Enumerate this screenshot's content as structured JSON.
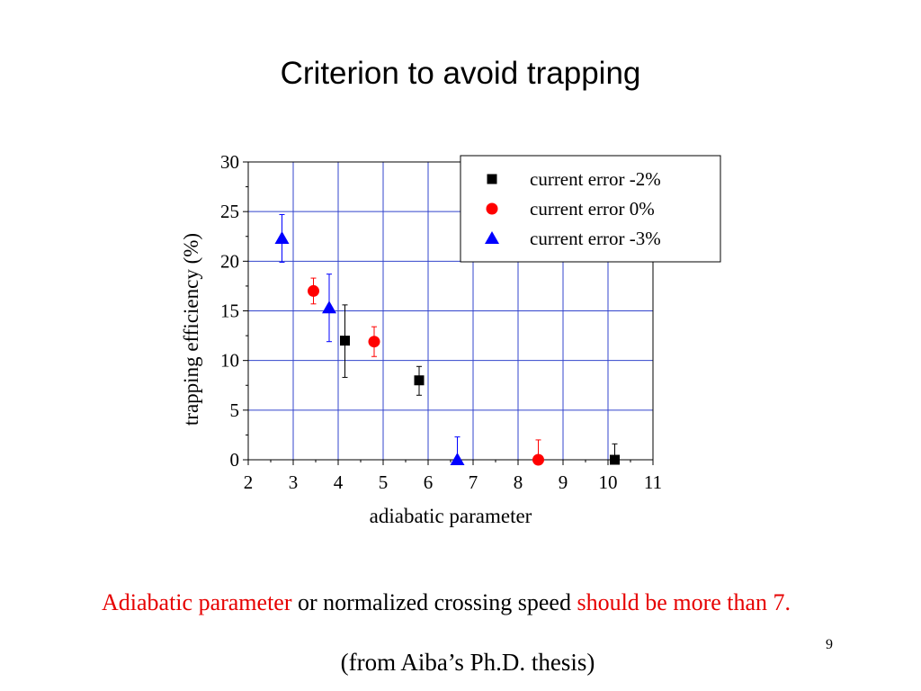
{
  "slide": {
    "title": "Criterion to avoid trapping",
    "conclusion": {
      "part1": "Adiabatic parameter",
      "part2": " or normalized crossing speed ",
      "part3": "should be more than 7."
    },
    "source": "(from Aiba’s Ph.D. thesis)",
    "page_number": "9"
  },
  "colors": {
    "highlight": "#e60000",
    "series_black": "#000000",
    "series_red": "#ff0000",
    "series_blue": "#0000ff",
    "grid": "#3344cc"
  },
  "chart_data": {
    "type": "scatter",
    "title": "",
    "xlabel": "adiabatic parameter",
    "ylabel": "trapping efficiency (%)",
    "xlim": [
      2,
      11
    ],
    "ylim": [
      0,
      30
    ],
    "xticks": [
      "2",
      "3",
      "4",
      "5",
      "6",
      "7",
      "8",
      "9",
      "10",
      "11"
    ],
    "yticks": [
      "0",
      "5",
      "10",
      "15",
      "20",
      "25",
      "30"
    ],
    "grid": true,
    "legend_position": "top-right",
    "series": [
      {
        "name": "current error -2%",
        "marker": "square",
        "color": "#000000",
        "points": [
          {
            "x": 4.15,
            "y": 12.0,
            "err_low": 3.7,
            "err_high": 3.6
          },
          {
            "x": 5.8,
            "y": 8.0,
            "err_low": 1.5,
            "err_high": 1.4
          },
          {
            "x": 10.15,
            "y": 0.0,
            "err_low": 0.0,
            "err_high": 1.6
          }
        ]
      },
      {
        "name": "current error 0%",
        "marker": "circle",
        "color": "#ff0000",
        "points": [
          {
            "x": 3.45,
            "y": 17.0,
            "err_low": 1.3,
            "err_high": 1.3
          },
          {
            "x": 4.8,
            "y": 11.9,
            "err_low": 1.5,
            "err_high": 1.5
          },
          {
            "x": 8.45,
            "y": 0.0,
            "err_low": 0.0,
            "err_high": 2.0
          }
        ]
      },
      {
        "name": "current error -3%",
        "marker": "triangle",
        "color": "#0000ff",
        "points": [
          {
            "x": 2.75,
            "y": 22.3,
            "err_low": 2.4,
            "err_high": 2.4
          },
          {
            "x": 3.8,
            "y": 15.3,
            "err_low": 3.4,
            "err_high": 3.4
          },
          {
            "x": 6.65,
            "y": 0.0,
            "err_low": 0.0,
            "err_high": 2.3
          }
        ]
      }
    ]
  }
}
